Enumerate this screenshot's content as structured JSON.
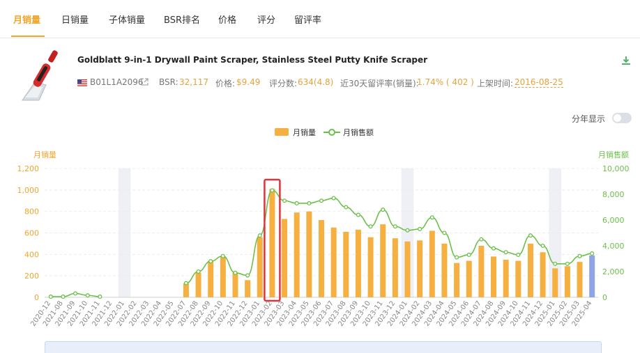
{
  "tabs": [
    "月销量",
    "日销量",
    "子体销量",
    "BSR排名",
    "价格",
    "评分",
    "留评率"
  ],
  "active_tab": 0,
  "product": {
    "title": "Goldblatt 9-in-1 Drywall Paint Scraper, Stainless Steel Putty Knife Scraper",
    "asin": "B01L1A2096",
    "bsr_label": "BSR:",
    "bsr_value": "32,117",
    "price_label": "价格:",
    "price_value": "$9.49",
    "rating_label": "评分数:",
    "rating_value": "634(4.8)",
    "review_rate_label": "近30天留评率(销量):",
    "review_rate_value": "1.74% ( 402 )",
    "listed_label": "上架时间:",
    "listed_value": "2016-08-25"
  },
  "toggle": {
    "label": "分年显示",
    "on": false
  },
  "colors": {
    "accent": "#f0a52c",
    "bar": "#f5b041",
    "last_bar": "#8fa4e8",
    "line": "#6cc04a",
    "highlight": "#d9363e",
    "shade": "#eef0f5"
  },
  "icons": {
    "flag": "us-flag-icon",
    "external": "external-link-icon",
    "download": "download-icon"
  },
  "chart_data": {
    "type": "bar",
    "legend": [
      "月销量",
      "月销售额"
    ],
    "legend_position": "top-center",
    "y_left": {
      "label": "月销量",
      "ticks": [
        "0",
        "200",
        "400",
        "600",
        "800",
        "1,000",
        "1,200"
      ],
      "range": [
        0,
        1200
      ]
    },
    "y_right": {
      "label": "月销售额",
      "ticks": [
        "0",
        "2,000",
        "4,000",
        "6,000",
        "8,000",
        "10,000"
      ],
      "range": [
        0,
        10000
      ]
    },
    "categories": [
      "2020-12",
      "2021-08",
      "2021-09",
      "2021-10",
      "2021-11",
      "2021-12",
      "2022-01",
      "2022-02",
      "2022-03",
      "2022-04",
      "2022-05",
      "2022-07",
      "2022-08",
      "2022-09",
      "2022-10",
      "2022-11",
      "2022-12",
      "2023-01",
      "2023-02",
      "2023-03",
      "2023-04",
      "2023-05",
      "2023-06",
      "2023-07",
      "2023-08",
      "2023-09",
      "2023-10",
      "2023-11",
      "2023-12",
      "2024-01",
      "2024-02",
      "2024-03",
      "2024-04",
      "2024-05",
      "2024-06",
      "2024-07",
      "2024-08",
      "2024-09",
      "2024-10",
      "2024-11",
      "2024-12",
      "2025-01",
      "2025-02",
      "2025-03",
      "2025-04"
    ],
    "series": [
      {
        "name": "月销量",
        "type": "bar",
        "values": [
          null,
          null,
          null,
          null,
          null,
          null,
          null,
          null,
          null,
          null,
          null,
          130,
          230,
          340,
          380,
          230,
          160,
          560,
          1010,
          730,
          790,
          800,
          720,
          650,
          610,
          630,
          560,
          680,
          550,
          520,
          530,
          620,
          500,
          320,
          340,
          480,
          380,
          350,
          340,
          500,
          420,
          270,
          290,
          330,
          390
        ]
      },
      {
        "name": "月销售额",
        "type": "line",
        "axis": "right",
        "values": [
          50,
          50,
          300,
          150,
          50,
          null,
          null,
          null,
          null,
          null,
          null,
          1100,
          2000,
          2800,
          3200,
          1900,
          1700,
          4800,
          8300,
          7500,
          7300,
          7300,
          7500,
          7700,
          7000,
          6400,
          5500,
          6800,
          5500,
          5200,
          5300,
          6200,
          5000,
          3100,
          3300,
          4500,
          3800,
          3500,
          3300,
          4800,
          4000,
          2600,
          2600,
          3200,
          3400
        ]
      }
    ],
    "shaded_columns": [
      "2022-01",
      "2024-01",
      "2025-01"
    ],
    "highlight_category": "2023-02",
    "grid": true
  }
}
